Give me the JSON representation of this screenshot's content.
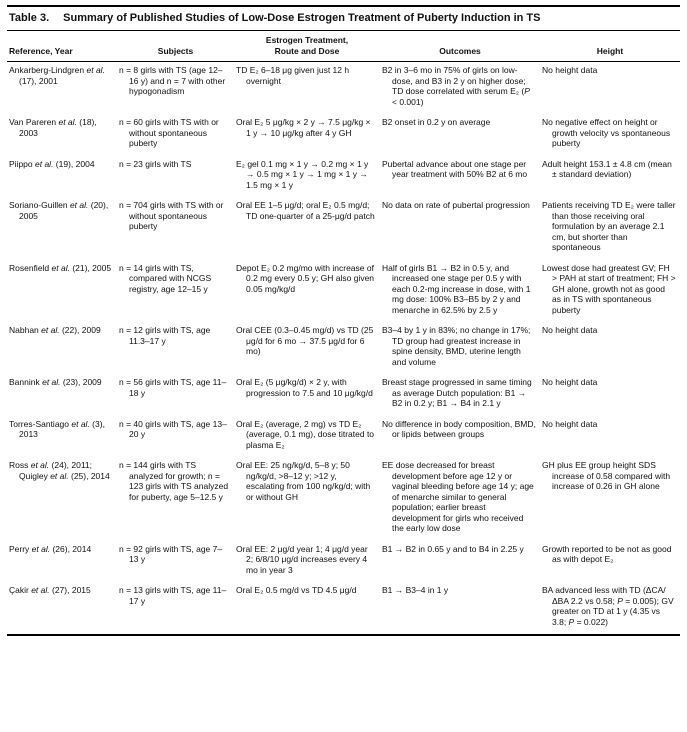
{
  "colors": {
    "rule": "#000000",
    "text": "#111111",
    "background": "#ffffff"
  },
  "table": {
    "label": "Table 3.",
    "title": "Summary of Published Studies of Low-Dose Estrogen Treatment of Puberty Induction in TS",
    "columns": [
      "Reference, Year",
      "Subjects",
      "Estrogen Treatment,\nRoute and Dose",
      "Outcomes",
      "Height"
    ],
    "rows": [
      {
        "reference": "Ankarberg-Lindgren et al. (17), 2001",
        "subjects": "n = 8 girls with TS (age 12–16 y) and n = 7 with other hypogonadism",
        "treatment": "TD E₂ 6–18 μg given just 12 h overnight",
        "outcomes": "B2 in 3–6 mo in 75% of girls on low-dose, and B3 in 2 y on higher dose; TD dose correlated with serum E₂ (P < 0.001)",
        "height": "No height data"
      },
      {
        "reference": "Van Pareren et al. (18), 2003",
        "subjects": "n = 60 girls with TS with or without spontaneous puberty",
        "treatment": "Oral E₂ 5 μg/kg × 2 y → 7.5 μg/kg × 1 y → 10 μg/kg after 4 y GH",
        "outcomes": "B2 onset in 0.2 y on average",
        "height": "No negative effect on height or growth velocity vs spontaneous puberty"
      },
      {
        "reference": "Piippo et al. (19), 2004",
        "subjects": "n = 23 girls with TS",
        "treatment": "E₂ gel 0.1 mg × 1 y → 0.2 mg × 1 y → 0.5 mg × 1 y → 1 mg × 1 y → 1.5 mg × 1 y",
        "outcomes": "Pubertal advance about one stage per year treatment with 50% B2 at 6 mo",
        "height": "Adult height 153.1 ± 4.8 cm (mean ± standard deviation)"
      },
      {
        "reference": "Soriano-Guillen et al. (20), 2005",
        "subjects": "n = 704 girls with TS with or without spontaneous puberty",
        "treatment": "Oral EE 1–5 μg/d; oral E₂ 0.5 mg/d; TD one-quarter of a 25-μg/d patch",
        "outcomes": "No data on rate of pubertal progression",
        "height": "Patients receiving TD E₂ were taller than those receiving oral formulation by an average 2.1 cm, but shorter than spontaneous"
      },
      {
        "reference": "Rosenfield et al. (21), 2005",
        "subjects": "n = 14 girls with TS, compared with NCGS registry, age 12–15 y",
        "treatment": "Depot E₂ 0.2 mg/mo with increase of 0.2 mg every 0.5 y; GH also given 0.05 mg/kg/d",
        "outcomes": "Half of girls B1 → B2 in 0.5 y, and increased one stage per 0.5 y with each 0.2-mg increase in dose, with 1 mg dose: 100% B3–B5 by 2 y and menarche in 62.5% by 2.5 y",
        "height": "Lowest dose had greatest GV; FH > PAH at start of treatment; FH > GH alone, growth not as good as in TS with spontaneous puberty"
      },
      {
        "reference": "Nabhan et al. (22), 2009",
        "subjects": "n = 12 girls with TS, age 11.3–17 y",
        "treatment": "Oral CEE (0.3–0.45 mg/d) vs TD (25 μg/d for 6 mo → 37.5 μg/d for 6 mo)",
        "outcomes": "B3–4 by 1 y in 83%; no change in 17%; TD group had greatest increase in spine density, BMD, uterine length and volume",
        "height": "No height data"
      },
      {
        "reference": "Bannink et al. (23), 2009",
        "subjects": "n = 56 girls with TS, age 11–18 y",
        "treatment": "Oral E₂ (5 μg/kg/d) × 2 y, with progression to 7.5 and 10 μg/kg/d",
        "outcomes": "Breast stage progressed in same timing as average Dutch population: B1 → B2 in 0.2 y; B1 → B4 in 2.1 y",
        "height": "No height data"
      },
      {
        "reference": "Torres-Santiago et al. (3), 2013",
        "subjects": "n = 40 girls with TS, age 13–20 y",
        "treatment": "Oral E₂ (average, 2 mg) vs TD E₂ (average, 0.1 mg), dose titrated to plasma E₂",
        "outcomes": "No difference in body composition, BMD, or lipids between groups",
        "height": "No height data"
      },
      {
        "reference": "Ross et al. (24), 2011; Quigley et al. (25), 2014",
        "subjects": "n = 144 girls with TS analyzed for growth; n = 123 girls with TS analyzed for puberty, age 5–12.5 y",
        "treatment": "Oral EE: 25 ng/kg/d, 5–8 y; 50 ng/kg/d, >8–12 y; >12 y, escalating from 100 ng/kg/d; with or without GH",
        "outcomes": "EE dose decreased for breast development before age 12 y or vaginal bleeding before age 14 y; age of menarche similar to general population; earlier breast development for girls who received the early low dose",
        "height": "GH plus EE group height SDS increase of 0.58 compared with increase of 0.26 in GH alone"
      },
      {
        "reference": "Perry et al. (26), 2014",
        "subjects": "n = 92 girls with TS, age 7–13 y",
        "treatment": "Oral EE: 2 μg/d year 1; 4 μg/d year 2; 6/8/10 μg/d increases every 4 mo in year 3",
        "outcomes": "B1 → B2 in 0.65 y and to B4 in 2.25 y",
        "height": "Growth reported to be not as good as with depot E₂"
      },
      {
        "reference": "Çakir et al. (27), 2015",
        "subjects": "n = 13 girls with TS, age 11–17 y",
        "treatment": "Oral E₂ 0.5 mg/d vs TD 4.5 μg/d",
        "outcomes": "B1 → B3–4 in 1 y",
        "height": "BA advanced less with TD (ΔCA/ΔBA 2.2 vs 0.58; P = 0.005); GV greater on TD at 1 y (4.35 vs 3.8; P = 0.022)"
      }
    ]
  }
}
